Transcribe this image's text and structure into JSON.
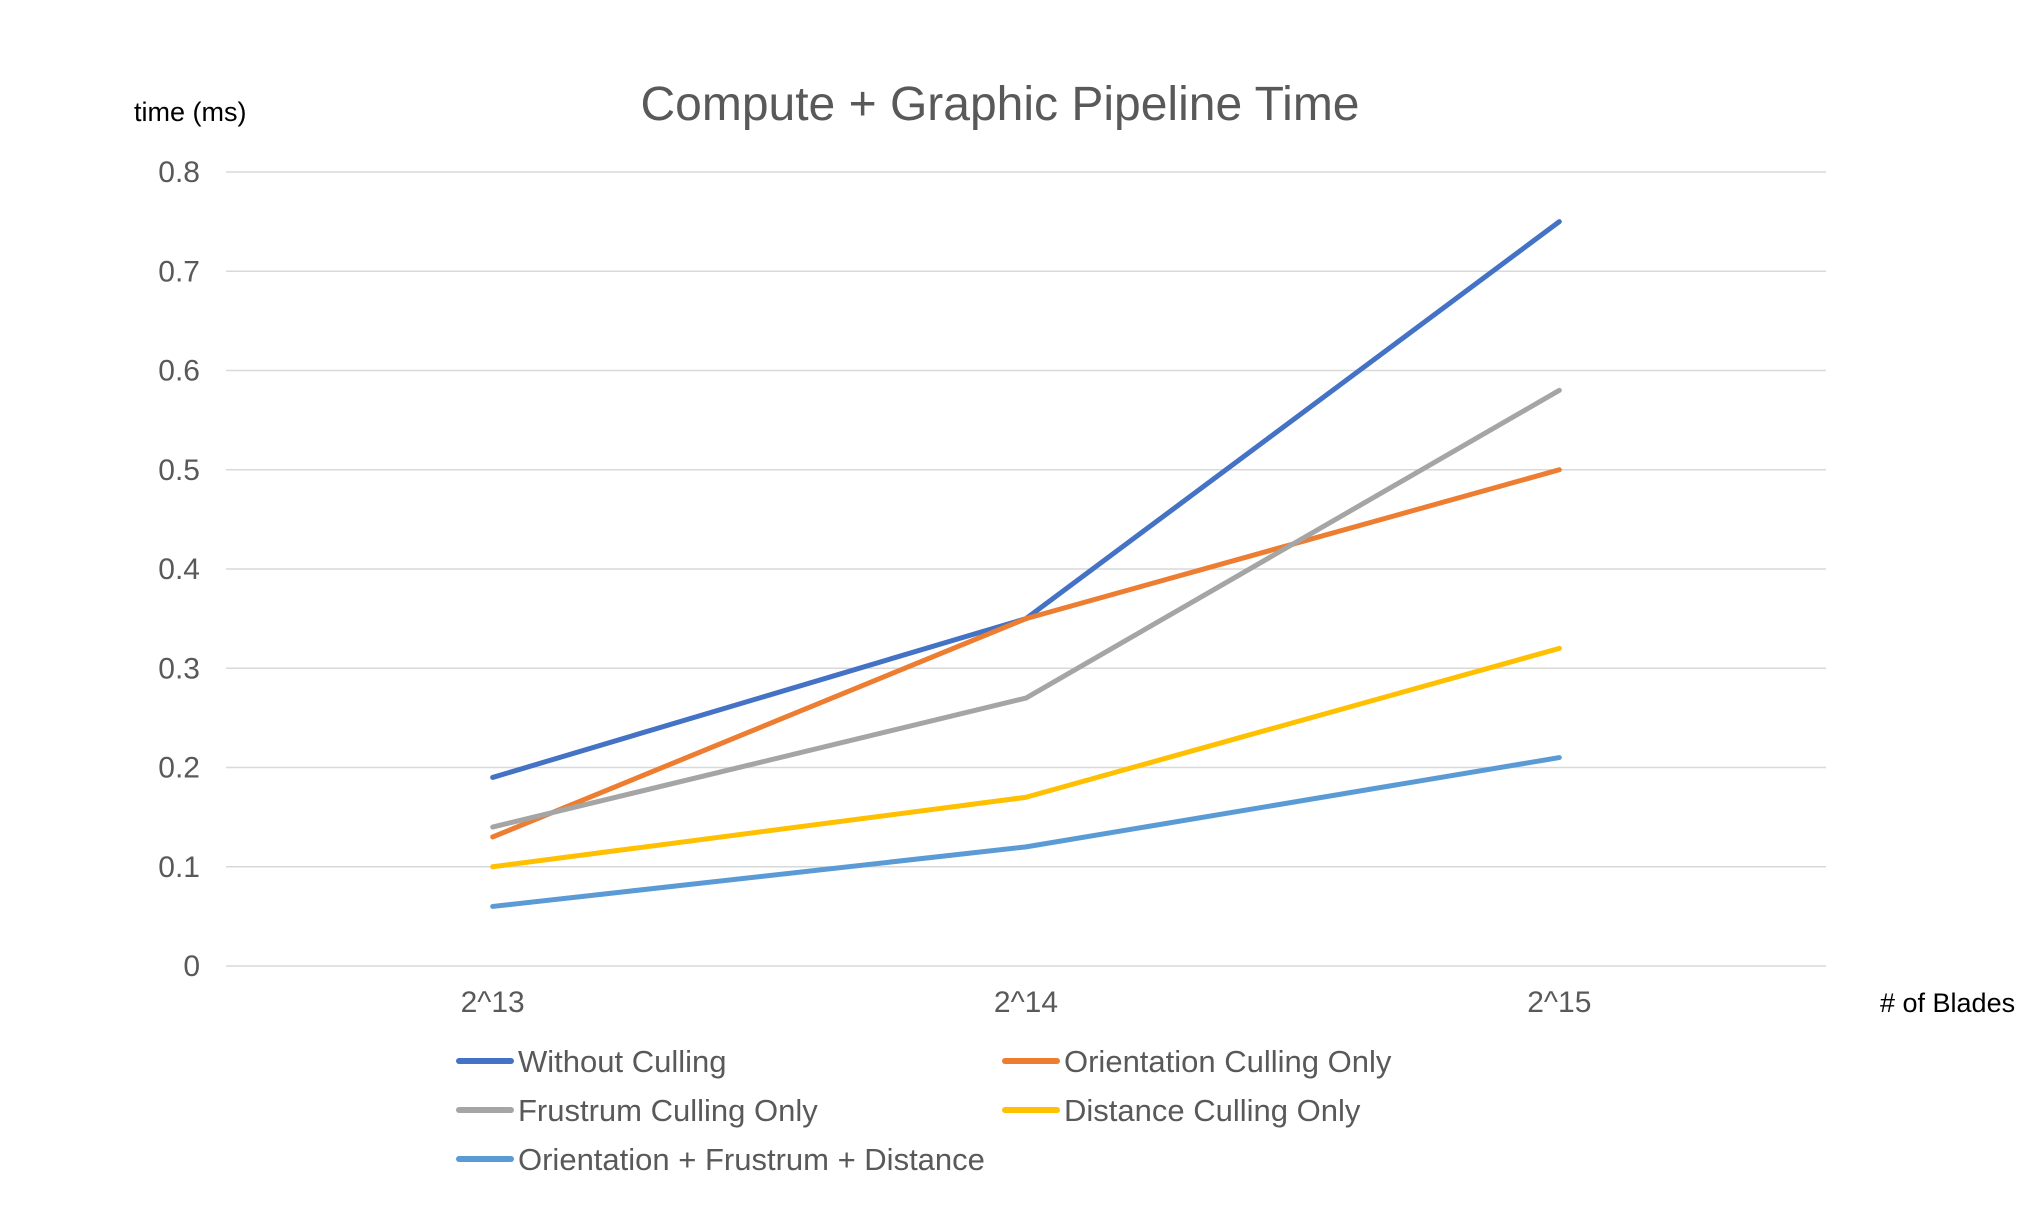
{
  "chart_data": {
    "type": "line",
    "title": "Compute + Graphic Pipeline Time",
    "ylabel": "time (ms)",
    "xlabel": "# of Blades",
    "categories": [
      "2^13",
      "2^14",
      "2^15"
    ],
    "ylim": [
      0,
      0.8
    ],
    "yticks": [
      "0",
      "0.1",
      "0.2",
      "0.3",
      "0.4",
      "0.5",
      "0.6",
      "0.7",
      "0.8"
    ],
    "grid": true,
    "legend_position": "bottom",
    "series": [
      {
        "name": "Without Culling",
        "color": "#4472c4",
        "values": [
          0.19,
          0.35,
          0.75
        ]
      },
      {
        "name": "Orientation Culling Only",
        "color": "#ed7d31",
        "values": [
          0.13,
          0.35,
          0.5
        ]
      },
      {
        "name": "Frustrum Culling Only",
        "color": "#a5a5a5",
        "values": [
          0.14,
          0.27,
          0.58
        ]
      },
      {
        "name": "Distance Culling Only",
        "color": "#ffc000",
        "values": [
          0.1,
          0.17,
          0.32
        ]
      },
      {
        "name": "Orientation + Frustrum + Distance",
        "color": "#5b9bd5",
        "values": [
          0.06,
          0.12,
          0.21
        ]
      }
    ]
  }
}
